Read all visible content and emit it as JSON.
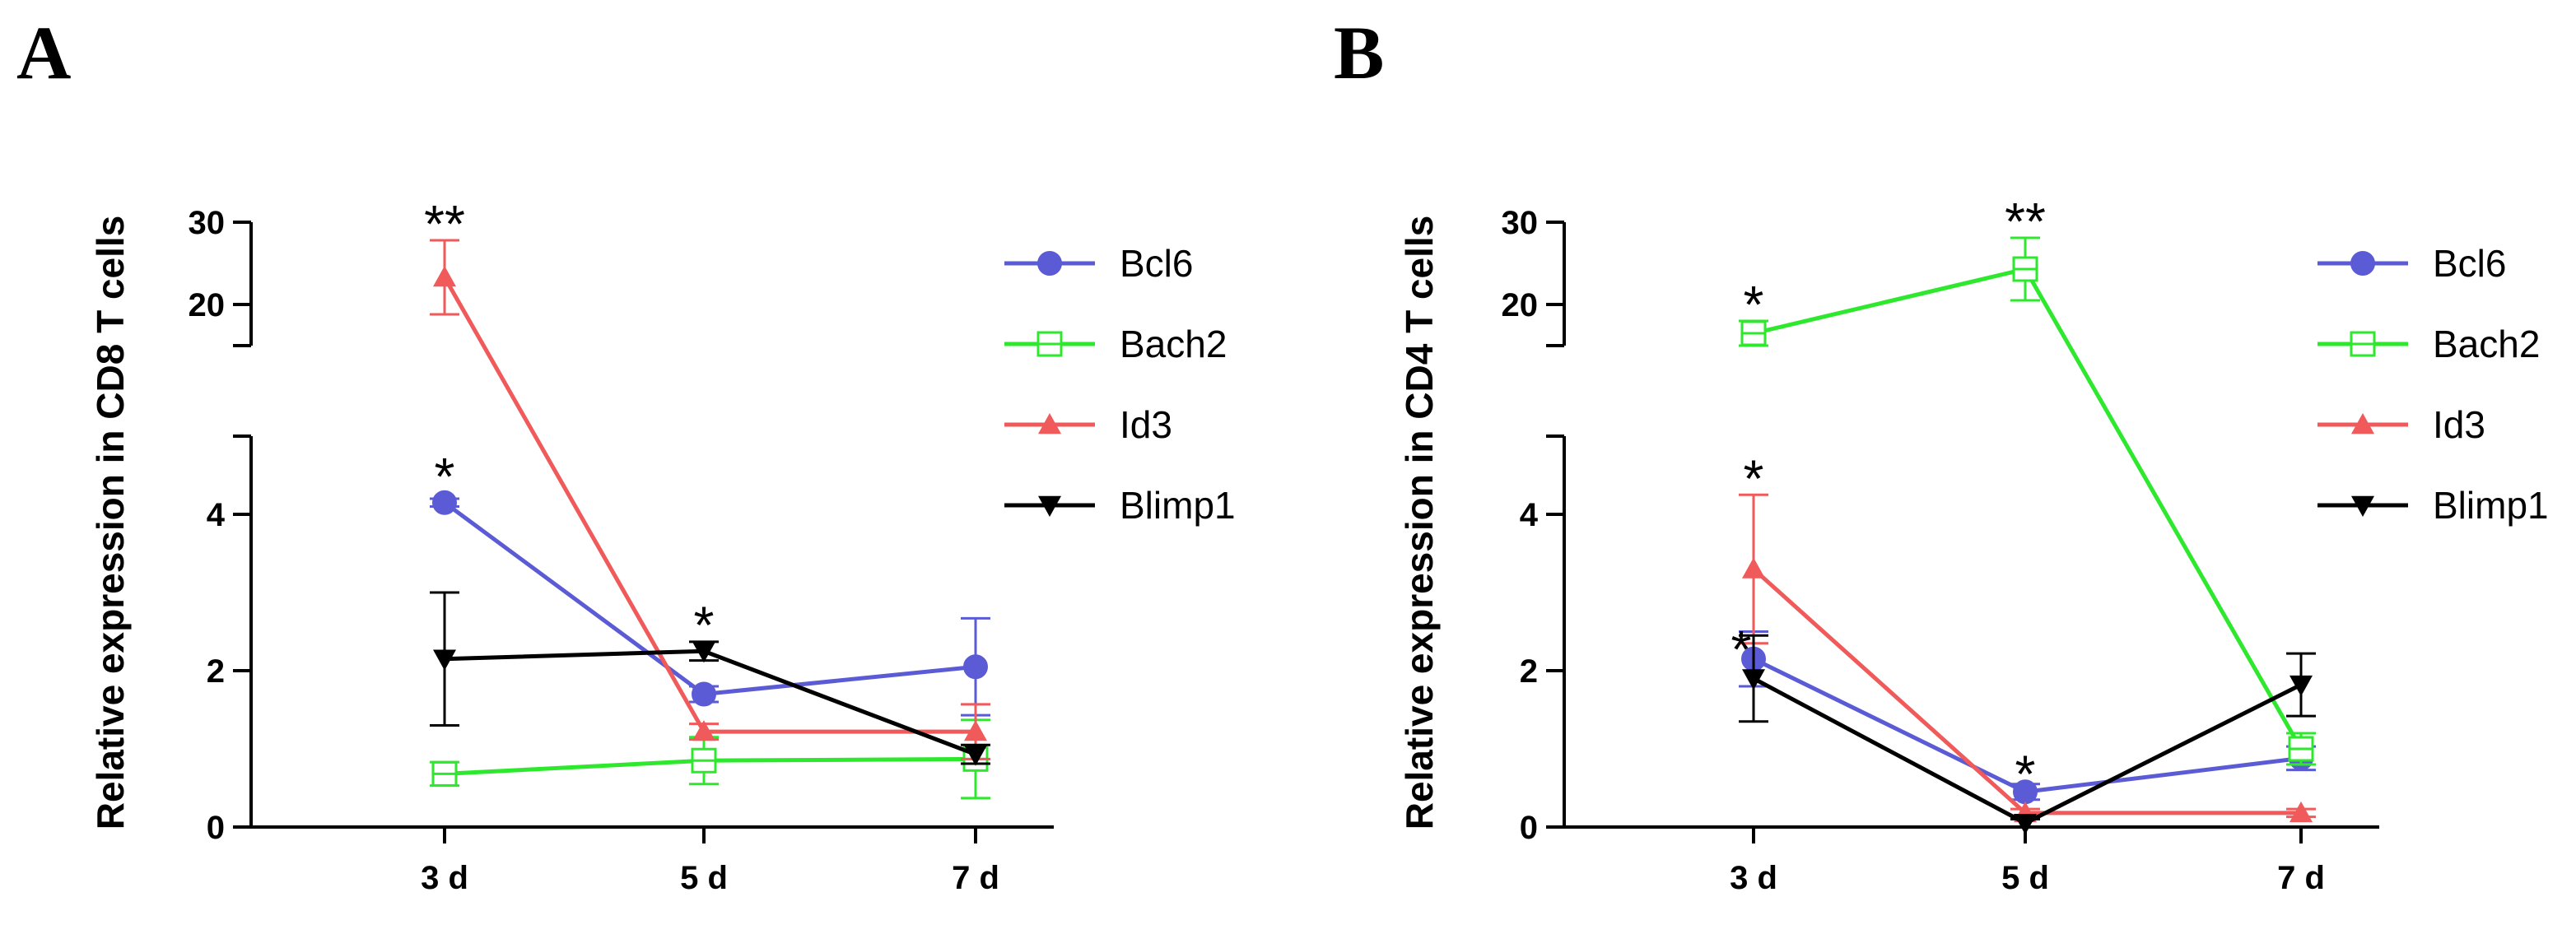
{
  "chart_data": [
    {
      "type": "line",
      "panel": "A",
      "title": "",
      "ylabel": "Relative expression in CD8 T cells",
      "xlabel": "",
      "categories": [
        "3 d",
        "5 d",
        "7 d"
      ],
      "y_axis_break": true,
      "ylim_lower": [
        0,
        5
      ],
      "ylim_upper": [
        15,
        30
      ],
      "yticks_lower": [
        "0",
        "2",
        "4"
      ],
      "yticks_upper": [
        "20",
        "30"
      ],
      "series": [
        {
          "name": "Bcl6",
          "marker": "circle",
          "color": "#5b5bd6",
          "values": [
            4.15,
            1.7,
            2.05
          ],
          "errors": [
            0.05,
            0.1,
            0.62
          ]
        },
        {
          "name": "Bach2",
          "marker": "open-square",
          "color": "#2ee82e",
          "values": [
            0.68,
            0.85,
            0.87
          ],
          "errors": [
            0.15,
            0.3,
            0.5
          ]
        },
        {
          "name": "Id3",
          "marker": "triangle-up",
          "color": "#f05a5a",
          "values": [
            23.3,
            1.22,
            1.22
          ],
          "errors": [
            4.5,
            0.1,
            0.35
          ]
        },
        {
          "name": "Blimp1",
          "marker": "triangle-down",
          "color": "#000000",
          "values": [
            2.15,
            2.25,
            0.93
          ],
          "errors": [
            0.85,
            0.12,
            0.12
          ]
        }
      ],
      "annotations": [
        {
          "text": "**",
          "category": "3 d",
          "series": "Id3"
        },
        {
          "text": "*",
          "category": "3 d",
          "series": "Bcl6"
        },
        {
          "text": "*",
          "category": "5 d",
          "series": "Blimp1"
        }
      ],
      "legend_position": "right"
    },
    {
      "type": "line",
      "panel": "B",
      "title": "",
      "ylabel": "Relative expression in CD4 T cells",
      "xlabel": "",
      "categories": [
        "3 d",
        "5 d",
        "7 d"
      ],
      "y_axis_break": true,
      "ylim_lower": [
        0,
        5
      ],
      "ylim_upper": [
        15,
        30
      ],
      "yticks_lower": [
        "0",
        "2",
        "4"
      ],
      "yticks_upper": [
        "20",
        "30"
      ],
      "series": [
        {
          "name": "Bcl6",
          "marker": "circle",
          "color": "#5b5bd6",
          "values": [
            2.15,
            0.45,
            0.88
          ],
          "errors": [
            0.35,
            0.1,
            0.15
          ]
        },
        {
          "name": "Bach2",
          "marker": "open-square",
          "color": "#2ee82e",
          "values": [
            16.5,
            24.3,
            1.0
          ],
          "errors": [
            1.5,
            3.8,
            0.2
          ]
        },
        {
          "name": "Id3",
          "marker": "triangle-up",
          "color": "#f05a5a",
          "values": [
            3.3,
            0.18,
            0.18
          ],
          "errors": [
            0.95,
            0.05,
            0.05
          ]
        },
        {
          "name": "Blimp1",
          "marker": "triangle-down",
          "color": "#000000",
          "values": [
            1.9,
            0.05,
            1.82
          ],
          "errors": [
            0.55,
            0.05,
            0.4
          ]
        }
      ],
      "annotations": [
        {
          "text": "**",
          "category": "5 d",
          "series": "Bach2"
        },
        {
          "text": "*",
          "category": "3 d",
          "series": "Bach2"
        },
        {
          "text": "*",
          "category": "3 d",
          "series": "Id3"
        },
        {
          "text": "*",
          "category": "3 d",
          "series": "Bcl6"
        },
        {
          "text": "*",
          "category": "5 d",
          "series": "Bcl6"
        }
      ],
      "legend_position": "right"
    }
  ]
}
